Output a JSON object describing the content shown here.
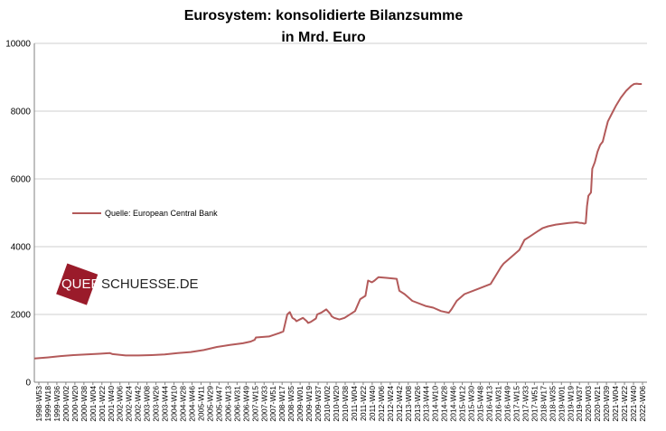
{
  "colors": {
    "series": "#b35a5a",
    "grid": "#cfcfcf",
    "axis": "#808080",
    "watermark": "#9a1b2a"
  },
  "watermark": {
    "part1": "QUER",
    "part2": "SCHUESSE.DE"
  },
  "chart_data": {
    "type": "line",
    "title": [
      "Eurosystem: konsolidierte Bilanzsumme",
      "in Mrd. Euro"
    ],
    "xlabel": "",
    "ylabel": "",
    "ylim": [
      0,
      10000
    ],
    "yticks": [
      0,
      2000,
      4000,
      6000,
      8000,
      10000
    ],
    "grid": "horizontal",
    "legend": "left",
    "x_tick_labels": [
      "1998-W53",
      "1999-W18",
      "1999-W36",
      "2000-W02",
      "2000-W20",
      "2000-W38",
      "2001-W04",
      "2001-W22",
      "2001-W40",
      "2002-W06",
      "2002-W24",
      "2002-W42",
      "2003-W08",
      "2003-W26",
      "2003-W44",
      "2004-W10",
      "2004-W28",
      "2004-W46",
      "2005-W11",
      "2005-W29",
      "2005-W47",
      "2006-W13",
      "2006-W31",
      "2006-W49",
      "2007-W15",
      "2007-W33",
      "2007-W51",
      "2008-W17",
      "2008-W35",
      "2009-W01",
      "2009-W19",
      "2009-W37",
      "2010-W02",
      "2010-W20",
      "2010-W38",
      "2011-W04",
      "2011-W22",
      "2011-W40",
      "2012-W06",
      "2012-W24",
      "2012-W42",
      "2013-W08",
      "2013-W26",
      "2013-W44",
      "2014-W10",
      "2014-W28",
      "2014-W46",
      "2015-W12",
      "2015-W30",
      "2015-W48",
      "2016-W13",
      "2016-W31",
      "2016-W49",
      "2017-W15",
      "2017-W33",
      "2017-W51",
      "2018-W17",
      "2018-W35",
      "2019-W01",
      "2019-W19",
      "2019-W37",
      "2020-W03",
      "2020-W21",
      "2020-W39",
      "2021-W04",
      "2021-W22",
      "2021-W40",
      "2022-W06"
    ],
    "series": [
      {
        "name": "Quelle: European Central Bank",
        "x": [
          1999.0,
          1999.5,
          2000.0,
          2000.5,
          2001.0,
          2001.5,
          2001.9,
          2002.0,
          2002.5,
          2003.0,
          2003.5,
          2004.0,
          2004.5,
          2005.0,
          2005.5,
          2006.0,
          2006.5,
          2007.0,
          2007.3,
          2007.45,
          2007.5,
          2008.0,
          2008.4,
          2008.55,
          2008.7,
          2008.8,
          2008.9,
          2009.0,
          2009.05,
          2009.3,
          2009.45,
          2009.5,
          2009.6,
          2009.8,
          2009.85,
          2010.0,
          2010.2,
          2010.35,
          2010.4,
          2010.5,
          2010.7,
          2010.9,
          2011.0,
          2011.3,
          2011.5,
          2011.7,
          2011.8,
          2011.95,
          2012.05,
          2012.2,
          2012.5,
          2012.9,
          2013.0,
          2013.2,
          2013.5,
          2014.0,
          2014.3,
          2014.6,
          2014.9,
          2015.0,
          2015.2,
          2015.5,
          2016.0,
          2016.5,
          2016.7,
          2016.9,
          2017.0,
          2017.3,
          2017.6,
          2017.8,
          2018.0,
          2018.3,
          2018.5,
          2018.7,
          2019.0,
          2019.5,
          2019.8,
          2019.95,
          2020.0,
          2020.1,
          2020.15,
          2020.2,
          2020.25,
          2020.35,
          2020.4,
          2020.5,
          2020.6,
          2020.7,
          2020.8,
          2020.9,
          2021.0,
          2021.2,
          2021.3,
          2021.5,
          2021.7,
          2021.9,
          2022.0,
          2022.1,
          2022.2,
          2022.3
        ],
        "values": [
          700,
          730,
          770,
          800,
          820,
          840,
          860,
          830,
          790,
          790,
          800,
          820,
          860,
          890,
          950,
          1040,
          1100,
          1150,
          1200,
          1250,
          1320,
          1350,
          1450,
          1500,
          2000,
          2070,
          1900,
          1850,
          1800,
          1900,
          1800,
          1750,
          1780,
          1880,
          2000,
          2050,
          2150,
          2020,
          1950,
          1900,
          1850,
          1900,
          1950,
          2100,
          2450,
          2550,
          3000,
          2950,
          3000,
          3100,
          3080,
          3050,
          2700,
          2600,
          2400,
          2250,
          2200,
          2100,
          2050,
          2150,
          2400,
          2600,
          2750,
          2900,
          3150,
          3400,
          3500,
          3700,
          3900,
          4200,
          4300,
          4450,
          4550,
          4600,
          4650,
          4700,
          4720,
          4700,
          4700,
          4680,
          4700,
          5200,
          5500,
          5600,
          6300,
          6500,
          6800,
          7000,
          7100,
          7400,
          7700,
          8000,
          8150,
          8400,
          8600,
          8750,
          8800,
          8810,
          8800,
          8800
        ]
      }
    ]
  }
}
